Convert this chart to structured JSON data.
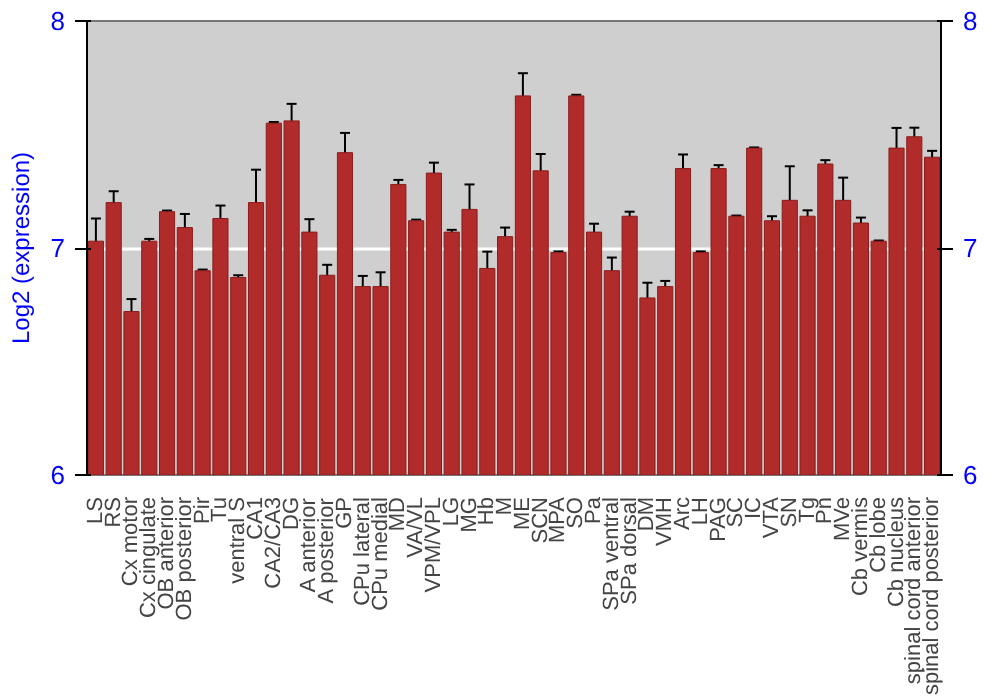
{
  "chart_data": {
    "type": "bar",
    "ylabel": "Log2 (expression)",
    "categories": [
      "LS",
      "RS",
      "Cx motor",
      "Cx cingulate",
      "OB anterior",
      "OB posterior",
      "Pir",
      "Tu",
      "ventral S",
      "CA1",
      "CA2/CA3",
      "DG",
      "A anterior",
      "A posterior",
      "GP",
      "CPu lateral",
      "CPu medial",
      "MD",
      "VA/VL",
      "VPM/VPL",
      "LG",
      "MG",
      "Hb",
      "M",
      "ME",
      "SCN",
      "MPA",
      "SO",
      "Pa",
      "SPa ventral",
      "SPa dorsal",
      "DM",
      "VMH",
      "Arc",
      "LH",
      "PAG",
      "SC",
      "IC",
      "VTA",
      "SN",
      "Tg",
      "Pn",
      "MVe",
      "Cb vermis",
      "Cb lobe",
      "Cb nucleus",
      "spinal cord anterior",
      "spinal cord posterior"
    ],
    "values": [
      7.03,
      7.2,
      6.72,
      7.03,
      7.16,
      7.09,
      6.9,
      7.13,
      6.87,
      7.2,
      7.55,
      7.56,
      7.07,
      6.88,
      7.42,
      6.83,
      6.83,
      7.28,
      7.12,
      7.33,
      7.07,
      7.17,
      6.91,
      7.05,
      7.67,
      7.34,
      6.98,
      7.67,
      7.07,
      6.9,
      7.14,
      6.78,
      6.83,
      7.35,
      6.98,
      7.35,
      7.14,
      7.44,
      7.12,
      7.21,
      7.14,
      7.37,
      7.21,
      7.11,
      7.03,
      7.44,
      7.49,
      7.4
    ],
    "errors": [
      0.1,
      0.05,
      0.055,
      0.01,
      0.005,
      0.06,
      0.005,
      0.057,
      0.01,
      0.145,
      0.005,
      0.075,
      0.057,
      0.046,
      0.087,
      0.047,
      0.063,
      0.02,
      0.005,
      0.046,
      0.01,
      0.11,
      0.074,
      0.04,
      0.1,
      0.074,
      0.005,
      0.005,
      0.037,
      0.058,
      0.02,
      0.067,
      0.025,
      0.062,
      0.005,
      0.015,
      0.003,
      0.003,
      0.02,
      0.15,
      0.026,
      0.017,
      0.1,
      0.024,
      0.003,
      0.089,
      0.04,
      0.028
    ],
    "color": "#b22b2b",
    "ylim": [
      6,
      8
    ],
    "yticks": [
      6,
      7,
      8
    ],
    "y2lim": [
      6,
      8
    ],
    "y2ticks": [
      6,
      7,
      8
    ],
    "grid": "y"
  }
}
